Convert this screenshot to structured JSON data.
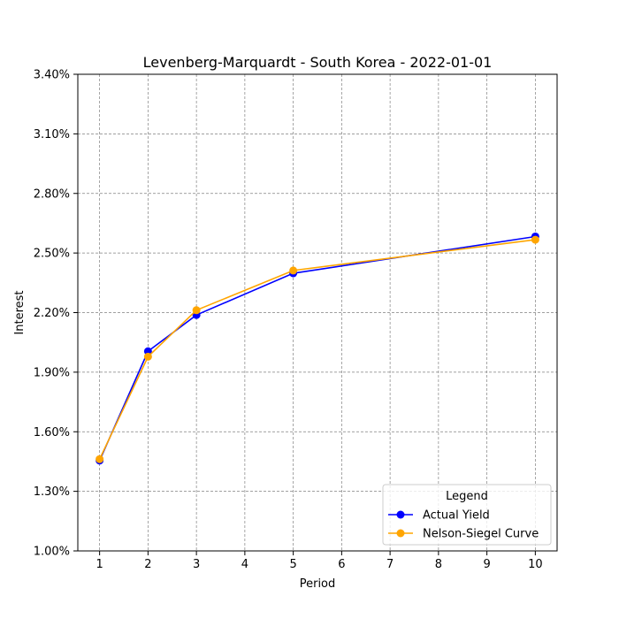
{
  "chart_data": {
    "type": "line",
    "title": "Levenberg-Marquardt - South Korea - 2022-01-01",
    "xlabel": "Period",
    "ylabel": "Interest",
    "x_ticks": [
      "1",
      "2",
      "3",
      "4",
      "5",
      "6",
      "7",
      "8",
      "9",
      "10"
    ],
    "y_ticks": [
      "1.00%",
      "1.30%",
      "1.60%",
      "1.90%",
      "2.20%",
      "2.50%",
      "2.80%",
      "3.10%",
      "3.40%"
    ],
    "xlim": [
      0.55,
      10.45
    ],
    "ylim": [
      0.01,
      0.034
    ],
    "grid": true,
    "legend": {
      "title": "Legend",
      "placement": "lower-right"
    },
    "series": [
      {
        "name": "Actual Yield",
        "color": "#0000ff",
        "x": [
          1,
          2,
          3,
          5,
          10
        ],
        "y": [
          0.01455,
          0.02005,
          0.02188,
          0.02398,
          0.02583
        ]
      },
      {
        "name": "Nelson-Siegel Curve",
        "color": "#ffa500",
        "x": [
          1,
          2,
          3,
          5,
          10
        ],
        "y": [
          0.01462,
          0.01978,
          0.02212,
          0.02412,
          0.02567
        ]
      }
    ]
  }
}
